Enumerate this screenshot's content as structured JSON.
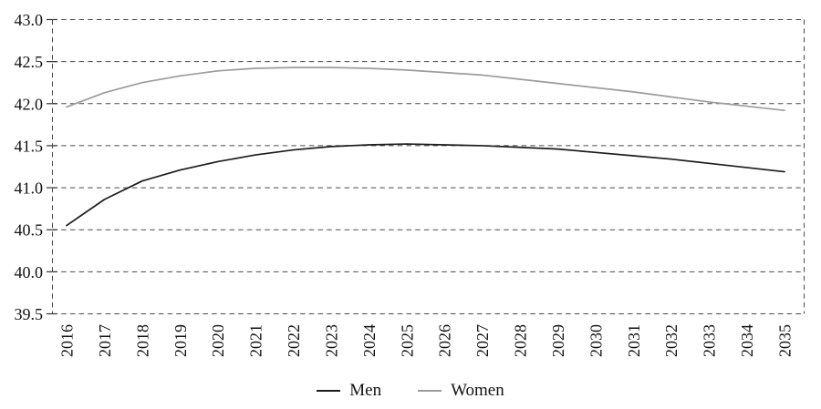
{
  "chart_data": {
    "type": "line",
    "x": [
      2016,
      2017,
      2018,
      2019,
      2020,
      2021,
      2022,
      2023,
      2024,
      2025,
      2026,
      2027,
      2028,
      2029,
      2030,
      2031,
      2032,
      2033,
      2034,
      2035
    ],
    "series": [
      {
        "name": "Men",
        "color": "#1c1c1c",
        "values": [
          40.55,
          40.86,
          41.08,
          41.21,
          41.31,
          41.39,
          41.45,
          41.49,
          41.51,
          41.52,
          41.51,
          41.5,
          41.48,
          41.46,
          41.42,
          41.38,
          41.34,
          41.29,
          41.24,
          41.19
        ]
      },
      {
        "name": "Women",
        "color": "#9c9c9c",
        "values": [
          41.96,
          42.13,
          42.25,
          42.33,
          42.39,
          42.42,
          42.43,
          42.43,
          42.42,
          42.4,
          42.37,
          42.34,
          42.29,
          42.24,
          42.19,
          42.14,
          42.08,
          42.02,
          41.97,
          41.92
        ]
      }
    ],
    "title": "",
    "xlabel": "",
    "ylabel": "",
    "ylim": [
      39.5,
      43.0
    ],
    "ytick_step": 0.5,
    "ytick_labels": [
      "39.5",
      "40.0",
      "40.5",
      "41.0",
      "41.5",
      "42.0",
      "42.5",
      "43.0"
    ],
    "xtick_labels": [
      "2016",
      "2017",
      "2018",
      "2019",
      "2020",
      "2021",
      "2022",
      "2023",
      "2024",
      "2025",
      "2026",
      "2027",
      "2028",
      "2029",
      "2030",
      "2031",
      "2032",
      "2033",
      "2034",
      "2035"
    ],
    "grid": "horizontal-dashed",
    "grid_color": "#4a4a4a",
    "legend_position": "bottom-center"
  },
  "legend": {
    "items": [
      {
        "label": "Men"
      },
      {
        "label": "Women"
      }
    ]
  }
}
